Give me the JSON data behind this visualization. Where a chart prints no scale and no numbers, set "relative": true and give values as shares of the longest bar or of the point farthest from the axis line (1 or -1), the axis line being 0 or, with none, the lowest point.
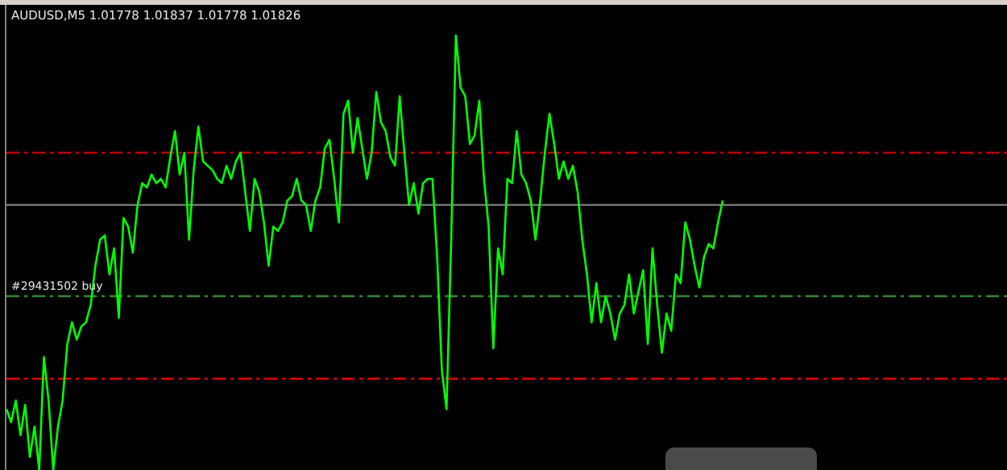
{
  "chart_data": {
    "type": "line",
    "relative": true,
    "title": "AUDUSD,M5  1.01778 1.01837 1.01778 1.01826",
    "categories": [
      null,
      null,
      null,
      null,
      null,
      null,
      null,
      null,
      null,
      null,
      null,
      null,
      null,
      null,
      null,
      null,
      null,
      null,
      null,
      null,
      null,
      null,
      null,
      null,
      null,
      null,
      null,
      null,
      null,
      null,
      null,
      null,
      null,
      null,
      null,
      null,
      null,
      null,
      null,
      null,
      null,
      null,
      null,
      null,
      null,
      null,
      null,
      null,
      null,
      null,
      null,
      null,
      null,
      null,
      null,
      null,
      null,
      null,
      null,
      null,
      null,
      null,
      null,
      null,
      null,
      null,
      null,
      null,
      null,
      null,
      null,
      null,
      null,
      null,
      null,
      null,
      null,
      null,
      null,
      null,
      null,
      null,
      null,
      null,
      null,
      null,
      null,
      null,
      null,
      null,
      null,
      null,
      null,
      null,
      null,
      null,
      null,
      null,
      null,
      null,
      null,
      null,
      null,
      null,
      null,
      null,
      null,
      null,
      null,
      null,
      null,
      null,
      null,
      null,
      null,
      null,
      null,
      null,
      null,
      null,
      null,
      null,
      null,
      null,
      null,
      null,
      null,
      null,
      null,
      null,
      null,
      null,
      null,
      null,
      null,
      null,
      null,
      null,
      null,
      null,
      null,
      null,
      null,
      null,
      null,
      null,
      null,
      null,
      null,
      null,
      null,
      null,
      null,
      null,
      null,
      null,
      null,
      null,
      null,
      null,
      null,
      null,
      null,
      null,
      null,
      null,
      null,
      null,
      null,
      null,
      null,
      null,
      null,
      null,
      null,
      null,
      null,
      null,
      null,
      null,
      null,
      null,
      null,
      null,
      null,
      null,
      null,
      null,
      null,
      null,
      null,
      null,
      null,
      null,
      null,
      null,
      null,
      null,
      null,
      null,
      null,
      null,
      null,
      null,
      null,
      null,
      null,
      null,
      null,
      null,
      null,
      null,
      null
    ],
    "series": [
      {
        "color": "#00ff00",
        "values": [
          0.14,
          0.11,
          0.16,
          0.08,
          0.15,
          0.03,
          0.1,
          0,
          0.26,
          0.16,
          0,
          0.1,
          0.16,
          0.29,
          0.34,
          0.3,
          0.33,
          0.34,
          0.38,
          0.47,
          0.53,
          0.54,
          0.45,
          0.51,
          0.35,
          0.58,
          0.56,
          0.5,
          0.61,
          0.66,
          0.65,
          0.68,
          0.66,
          0.67,
          0.65,
          0.72,
          0.78,
          0.68,
          0.73,
          0.53,
          0.69,
          0.79,
          0.71,
          0.7,
          0.69,
          0.67,
          0.66,
          0.7,
          0.67,
          0.71,
          0.73,
          0.64,
          0.55,
          0.67,
          0.64,
          0.57,
          0.47,
          0.56,
          0.55,
          0.57,
          0.62,
          0.63,
          0.67,
          0.62,
          0.61,
          0.55,
          0.62,
          0.65,
          0.74,
          0.76,
          0.67,
          0.57,
          0.82,
          0.85,
          0.73,
          0.81,
          0.74,
          0.67,
          0.73,
          0.87,
          0.8,
          0.78,
          0.72,
          0.7,
          0.86,
          0.73,
          0.61,
          0.66,
          0.59,
          0.66,
          0.67,
          0.67,
          0.49,
          0.23,
          0.14,
          0.53,
          1,
          0.88,
          0.86,
          0.75,
          0.77,
          0.85,
          0.67,
          0.56,
          0.28,
          0.51,
          0.45,
          0.67,
          0.66,
          0.78,
          0.68,
          0.66,
          0.62,
          0.53,
          0.62,
          0.73,
          0.82,
          0.75,
          0.67,
          0.71,
          0.67,
          0.7,
          0.64,
          0.53,
          0.45,
          0.34,
          0.43,
          0.34,
          0.4,
          0.36,
          0.3,
          0.36,
          0.38,
          0.45,
          0.36,
          0.41,
          0.46,
          0.29,
          0.51,
          0.38,
          0.27,
          0.36,
          0.32,
          0.45,
          0.43,
          0.57,
          0.53,
          0.47,
          0.42,
          0.49,
          0.52,
          0.51,
          0.57,
          0.62,
          null,
          null,
          null,
          null,
          null,
          null,
          null,
          null,
          null,
          null,
          null,
          null,
          null,
          null,
          null,
          null,
          null,
          null,
          null,
          null,
          null,
          null,
          null,
          null,
          null,
          null,
          null,
          null,
          null,
          null,
          null,
          null,
          null,
          null,
          null,
          null,
          null,
          null,
          null,
          null,
          null,
          null,
          null,
          null,
          null,
          null,
          null,
          null,
          null,
          null,
          null,
          null,
          null,
          null,
          null,
          null,
          null,
          null,
          null
        ]
      }
    ],
    "ref_lines": [
      {
        "axis": "y",
        "value": 0.73,
        "color": "#c00000",
        "line_style": "dashed"
      },
      {
        "axis": "y",
        "value": 0.61,
        "color": "#808080",
        "line_style": "solid"
      },
      {
        "axis": "y",
        "value": 0.4,
        "color": "#2e8b2e",
        "line_style": "dashed",
        "label": "#29431502 buy"
      },
      {
        "axis": "y",
        "value": 0.21,
        "color": "#ff0000",
        "line_style": "dashed"
      }
    ]
  }
}
